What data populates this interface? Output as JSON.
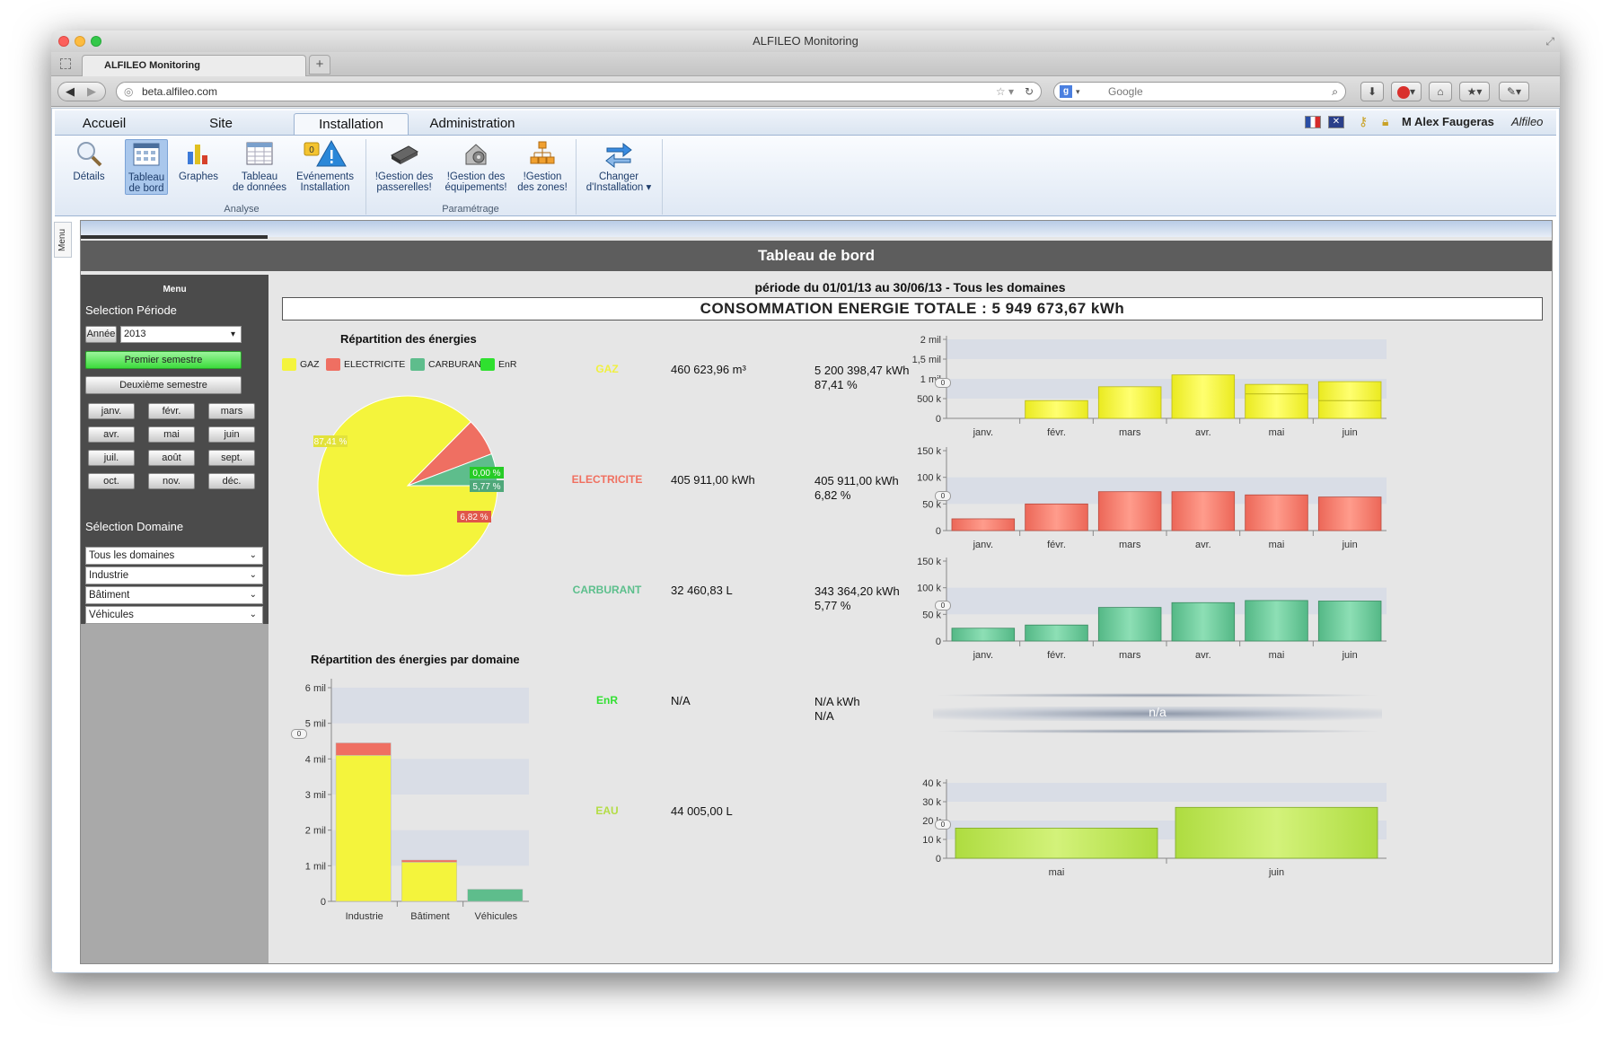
{
  "browser": {
    "window_title": "ALFILEO Monitoring",
    "tab_label": "ALFILEO Monitoring",
    "new_tab": "+",
    "url": "beta.alfileo.com",
    "search_placeholder": "Google"
  },
  "ribbon": {
    "tabs": [
      {
        "label": "Accueil"
      },
      {
        "label": "Site"
      },
      {
        "label": "Installation"
      },
      {
        "label": "Administration"
      }
    ],
    "user": "M Alex Faugeras",
    "company": "Alfileo",
    "buttons": [
      {
        "line1": "Détails",
        "line2": ""
      },
      {
        "line1": "Tableau",
        "line2": "de bord"
      },
      {
        "line1": "Graphes",
        "line2": ""
      },
      {
        "line1": "Tableau",
        "line2": "de données"
      },
      {
        "line1": "Evénements",
        "line2": "Installation",
        "badge": "0"
      },
      {
        "line1": "!Gestion des",
        "line2": "passerelles!"
      },
      {
        "line1": "!Gestion des",
        "line2": "équipements!"
      },
      {
        "line1": "!Gestion",
        "line2": "des zones!"
      },
      {
        "line1": "Changer",
        "line2": "d'Installation ▾"
      }
    ],
    "groups": {
      "analyse": "Analyse",
      "parametrage": "Paramétrage"
    }
  },
  "side_tab": "Menu",
  "page": {
    "title": "Tableau de bord",
    "periode": "période du 01/01/13 au 30/06/13 - Tous les domaines",
    "total": "CONSOMMATION ENERGIE TOTALE : 5 949 673,67 kWh"
  },
  "sidebar": {
    "menu_title": "Menu",
    "periode_label": "Selection Période",
    "year_button": "Année",
    "year_value": "2013",
    "semester1": "Premier semestre",
    "semester2": "Deuxième semestre",
    "months": [
      "janv.",
      "févr.",
      "mars",
      "avr.",
      "mai",
      "juin",
      "juil.",
      "août",
      "sept.",
      "oct.",
      "nov.",
      "déc."
    ],
    "domaine_label": "Sélection Domaine",
    "domains": [
      "Tous les domaines",
      "Industrie",
      "Bâtiment",
      "Véhicules"
    ]
  },
  "energy_rows": [
    {
      "name": "GAZ",
      "color": "#f0f040",
      "qty": "460 623,96 m³",
      "kwh": "5 200 398,47 kWh",
      "pct": "87,41 %"
    },
    {
      "name": "ELECTRICITE",
      "color": "#f07060",
      "qty": "405 911,00 kWh",
      "kwh": "405 911,00 kWh",
      "pct": "6,82 %"
    },
    {
      "name": "CARBURANT",
      "color": "#5cbf8c",
      "qty": "32 460,83 L",
      "kwh": "343 364,20 kWh",
      "pct": "5,77 %"
    },
    {
      "name": "EnR",
      "color": "#33e033",
      "qty": "N/A",
      "kwh": "N/A kWh",
      "pct": "N/A"
    },
    {
      "name": "EAU",
      "color": "#b3dd44",
      "qty": "44 005,00 L",
      "kwh": "",
      "pct": ""
    }
  ],
  "na_label": "n/a",
  "zoom_label": "0",
  "chart_data": [
    {
      "type": "pie",
      "title": "Répartition des énergies",
      "legend": [
        "GAZ",
        "ELECTRICITE",
        "CARBURANT",
        "EnR"
      ],
      "colors": [
        "#f4f43c",
        "#ef6f62",
        "#5ebd8c",
        "#2fe02f"
      ],
      "values": [
        87.41,
        6.82,
        5.77,
        0.0
      ],
      "labels": [
        "87,41 %",
        "6,82 %",
        "5,77 %",
        "0,00 %"
      ]
    },
    {
      "type": "bar",
      "title": "Répartition des énergies par domaine",
      "categories": [
        "Industrie",
        "Bâtiment",
        "Véhicules"
      ],
      "series": [
        {
          "name": "GAZ",
          "values": [
            4100000,
            1100000,
            0
          ]
        },
        {
          "name": "ELECTRICITE",
          "values": [
            350000,
            60000,
            0
          ]
        },
        {
          "name": "CARBURANT",
          "values": [
            0,
            0,
            340000
          ]
        }
      ],
      "yticks": [
        "0",
        "1 mil",
        "2 mil",
        "3 mil",
        "4 mil",
        "5 mil",
        "6 mil"
      ],
      "ylim": [
        0,
        6000000
      ]
    },
    {
      "type": "bar",
      "categories": [
        "janv.",
        "févr.",
        "mars",
        "avr.",
        "mai",
        "juin"
      ],
      "values": [
        0,
        450000,
        800000,
        1100000,
        860000,
        930000
      ],
      "markers": [
        null,
        null,
        null,
        null,
        620000,
        450000
      ],
      "yticks": [
        "0",
        "500 k",
        "1 mil",
        "1,5 mil",
        "2 mil"
      ],
      "ylim": [
        0,
        2000000
      ]
    },
    {
      "type": "bar",
      "categories": [
        "janv.",
        "févr.",
        "mars",
        "avr.",
        "mai",
        "juin"
      ],
      "values": [
        22000,
        50000,
        73000,
        73000,
        67000,
        63000
      ],
      "yticks": [
        "0",
        "50 k",
        "100 k",
        "150 k"
      ],
      "ylim": [
        0,
        150000
      ]
    },
    {
      "type": "bar",
      "categories": [
        "janv.",
        "févr.",
        "mars",
        "avr.",
        "mai",
        "juin"
      ],
      "values": [
        24000,
        30000,
        63000,
        72000,
        76000,
        75000
      ],
      "yticks": [
        "0",
        "50 k",
        "100 k",
        "150 k"
      ],
      "ylim": [
        0,
        150000
      ]
    },
    {
      "type": "bar",
      "categories": [
        "mai",
        "juin"
      ],
      "values": [
        16000,
        27000
      ],
      "yticks": [
        "0",
        "10 k",
        "20 k",
        "30 k",
        "40 k"
      ],
      "ylim": [
        0,
        40000
      ]
    }
  ]
}
